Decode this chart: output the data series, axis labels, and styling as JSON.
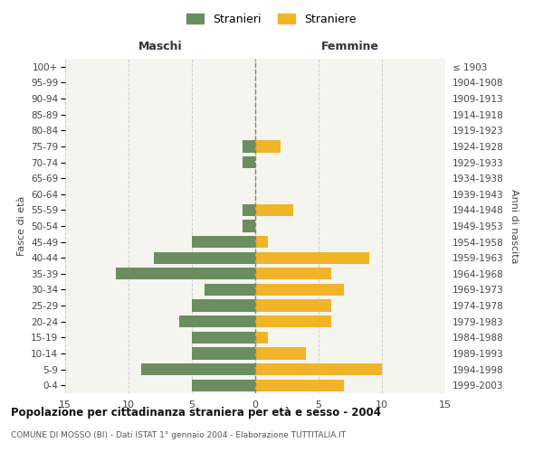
{
  "age_groups": [
    "0-4",
    "5-9",
    "10-14",
    "15-19",
    "20-24",
    "25-29",
    "30-34",
    "35-39",
    "40-44",
    "45-49",
    "50-54",
    "55-59",
    "60-64",
    "65-69",
    "70-74",
    "75-79",
    "80-84",
    "85-89",
    "90-94",
    "95-99",
    "100+"
  ],
  "birth_years": [
    "1999-2003",
    "1994-1998",
    "1989-1993",
    "1984-1988",
    "1979-1983",
    "1974-1978",
    "1969-1973",
    "1964-1968",
    "1959-1963",
    "1954-1958",
    "1949-1953",
    "1944-1948",
    "1939-1943",
    "1934-1938",
    "1929-1933",
    "1924-1928",
    "1919-1923",
    "1914-1918",
    "1909-1913",
    "1904-1908",
    "≤ 1903"
  ],
  "males": [
    5,
    9,
    5,
    5,
    6,
    5,
    4,
    11,
    8,
    5,
    1,
    1,
    0,
    0,
    1,
    1,
    0,
    0,
    0,
    0,
    0
  ],
  "females": [
    7,
    10,
    4,
    1,
    6,
    6,
    7,
    6,
    9,
    1,
    0,
    3,
    0,
    0,
    0,
    2,
    0,
    0,
    0,
    0,
    0
  ],
  "color_male": "#6b8e5e",
  "color_female": "#f0b429",
  "xlim": 15,
  "title": "Popolazione per cittadinanza straniera per età e sesso - 2004",
  "subtitle": "COMUNE DI MOSSO (BI) - Dati ISTAT 1° gennaio 2004 - Elaborazione TUTTITALIA.IT",
  "xlabel_left": "Maschi",
  "xlabel_right": "Femmine",
  "ylabel_left": "Fasce di età",
  "ylabel_right": "Anni di nascita",
  "legend_male": "Stranieri",
  "legend_female": "Straniere",
  "background_color": "#f5f5f0",
  "grid_color": "#cccccc",
  "bar_height": 0.75
}
